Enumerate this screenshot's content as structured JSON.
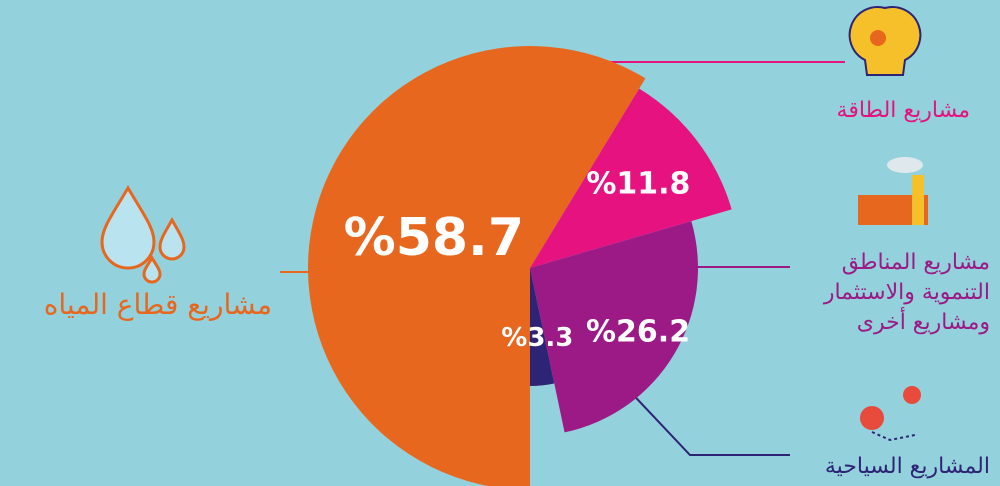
{
  "chart_data": {
    "type": "pie",
    "categories": [
      "مشاريع قطاع المياه",
      "مشاريع الطاقة",
      "مشاريع المناطق التنموية والاستثمار ومشاريع أخرى",
      "المشاريع السياحية"
    ],
    "values": [
      58.7,
      11.8,
      26.2,
      3.3
    ],
    "value_labels": [
      "%58.7",
      "%11.8",
      "%26.2",
      "%3.3"
    ],
    "colors": [
      "#e8671f",
      "#e5127f",
      "#9c1a85",
      "#2e2475"
    ]
  }
}
